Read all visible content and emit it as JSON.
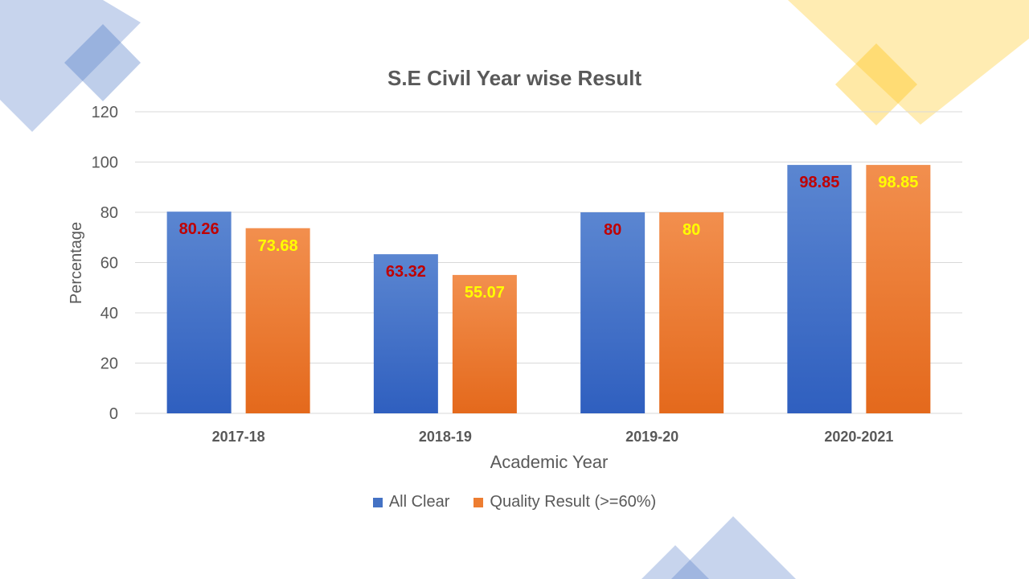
{
  "colors": {
    "deco_blue": "#4472C4",
    "deco_yellow": "#FFC000",
    "series_1": "#4472C4",
    "series_2": "#ED7D31",
    "label_1": "#C00000",
    "label_2": "#FFFF00",
    "axis_text": "#595959",
    "gridline": "#D9D9D9"
  },
  "chart_data": {
    "type": "bar",
    "title": "S.E Civil Year wise Result",
    "xlabel": "Academic Year",
    "ylabel": "Percentage",
    "ylim": [
      0,
      120
    ],
    "yticks": [
      0,
      20,
      40,
      60,
      80,
      100,
      120
    ],
    "ytick_labels": [
      "0",
      "20",
      "40",
      "60",
      "80",
      "100",
      "120"
    ],
    "grid": true,
    "legend_position": "bottom",
    "categories": [
      "2017-18",
      "2018-19",
      "2019-20",
      "2020-2021"
    ],
    "series": [
      {
        "name": "All Clear",
        "values": [
          80.26,
          63.32,
          80,
          98.85
        ],
        "value_labels": [
          "80.26",
          "63.32",
          "80",
          "98.85"
        ]
      },
      {
        "name": "Quality Result (>=60%)",
        "values": [
          73.68,
          55.07,
          80,
          98.85
        ],
        "value_labels": [
          "73.68",
          "55.07",
          "80",
          "98.85"
        ]
      }
    ]
  }
}
